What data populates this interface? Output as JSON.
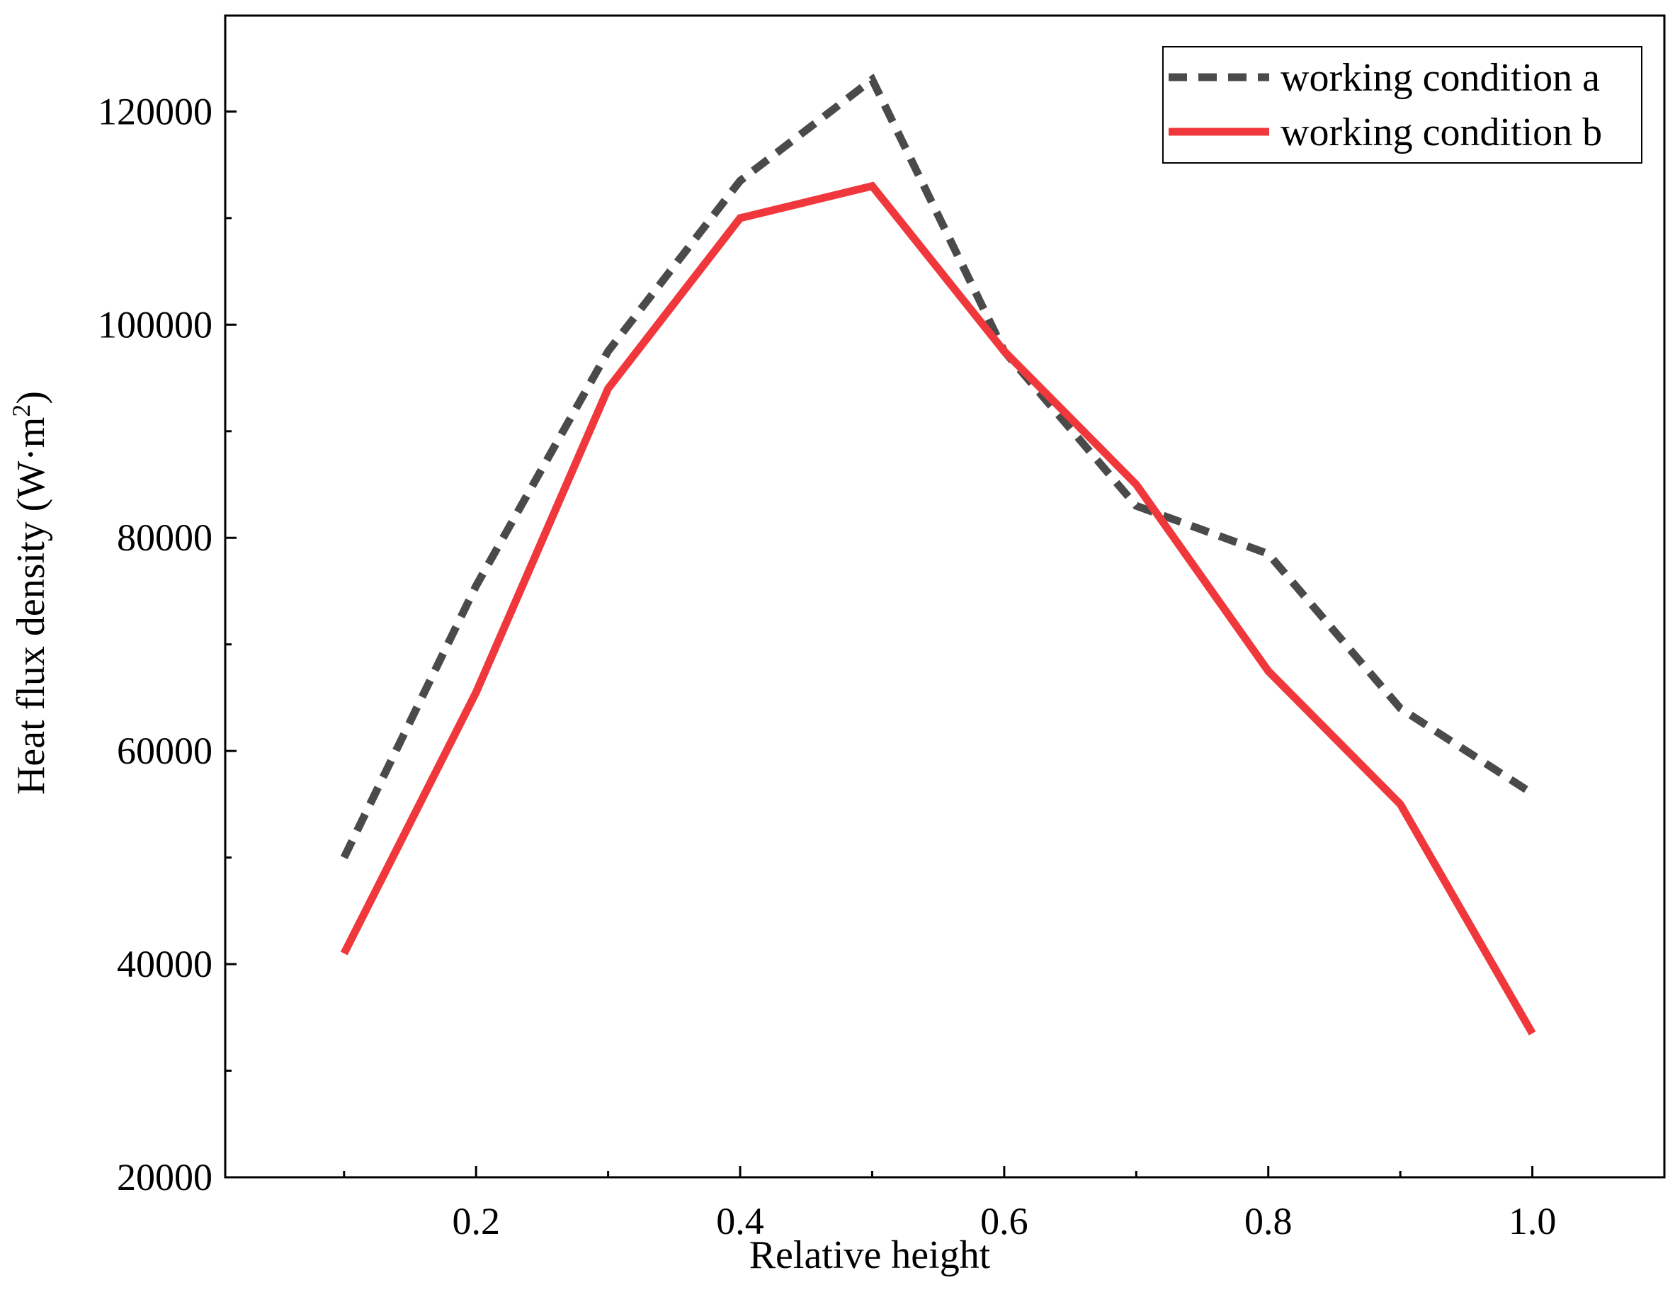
{
  "chart_data": {
    "type": "line",
    "title": "",
    "xlabel": "Relative height",
    "ylabel_main": "Heat flux density (W·m",
    "ylabel_sup": "2",
    "ylabel_close": ")",
    "xlim": [
      0.01,
      1.1
    ],
    "ylim": [
      20000,
      129000
    ],
    "xticks": [
      0.2,
      0.4,
      0.6,
      0.8,
      1.0
    ],
    "xtick_labels": [
      "0.2",
      "0.4",
      "0.6",
      "0.8",
      "1.0"
    ],
    "yticks": [
      20000,
      40000,
      60000,
      80000,
      100000,
      120000
    ],
    "ytick_labels": [
      "20000",
      "40000",
      "60000",
      "80000",
      "100000",
      "120000"
    ],
    "y_minor_ticks": [
      30000,
      50000,
      70000,
      90000,
      110000
    ],
    "x_minor_ticks": [
      0.1,
      0.3,
      0.5,
      0.7,
      0.9
    ],
    "grid": false,
    "legend_position": "top-right",
    "x": [
      0.1,
      0.2,
      0.3,
      0.4,
      0.5,
      0.6,
      0.7,
      0.8,
      0.9,
      1.0
    ],
    "series": [
      {
        "name": "working condition a",
        "color": "#4a4a4a",
        "style": "dashed",
        "values": [
          50000,
          75500,
          97500,
          113500,
          123000,
          97500,
          83000,
          78500,
          64000,
          56000
        ]
      },
      {
        "name": "working condition b",
        "color": "#f0383c",
        "style": "solid",
        "values": [
          41000,
          65500,
          94000,
          110000,
          113000,
          97500,
          85000,
          67500,
          55000,
          33500
        ]
      }
    ]
  }
}
